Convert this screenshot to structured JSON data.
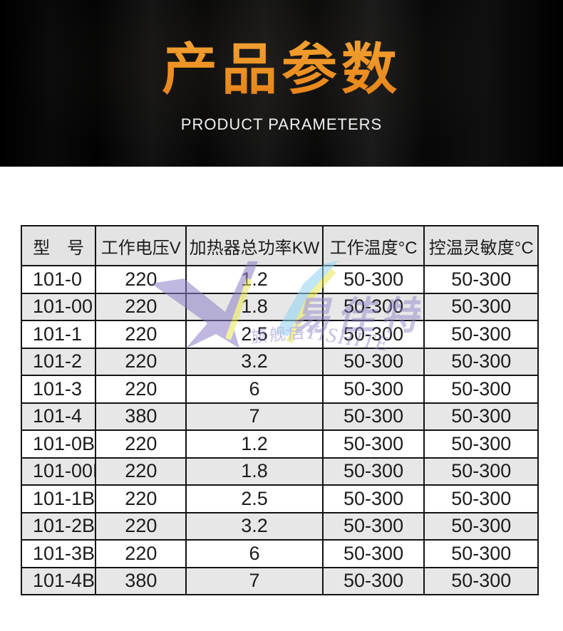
{
  "hero": {
    "title_cn": "产品参数",
    "title_en": "PRODUCT PARAMETERS",
    "accent_color": "#f09a2b",
    "background_color": "#000000"
  },
  "table": {
    "columns": [
      "型　号",
      "工作电压V",
      "加热器总功率KW",
      "工作温度°C",
      "控温灵敏度°C"
    ],
    "column_keys": [
      "model",
      "voltage",
      "power",
      "temp",
      "sensitivity"
    ],
    "rows": [
      [
        "101-0",
        "220",
        "1.2",
        "50-300",
        "50-300"
      ],
      [
        "101-00",
        "220",
        "1.8",
        "50-300",
        "50-300"
      ],
      [
        "101-1",
        "220",
        "2.5",
        "50-300",
        "50-300"
      ],
      [
        "101-2",
        "220",
        "3.2",
        "50-300",
        "50-300"
      ],
      [
        "101-3",
        "220",
        "6",
        "50-300",
        "50-300"
      ],
      [
        "101-4",
        "380",
        "7",
        "50-300",
        "50-300"
      ],
      [
        "101-0B",
        "220",
        "1.2",
        "50-300",
        "50-300"
      ],
      [
        "101-00B",
        "220",
        "1.8",
        "50-300",
        "50-300"
      ],
      [
        "101-1B",
        "220",
        "2.5",
        "50-300",
        "50-300"
      ],
      [
        "101-2B",
        "220",
        "3.2",
        "50-300",
        "50-300"
      ],
      [
        "101-3B",
        "220",
        "6",
        "50-300",
        "50-300"
      ],
      [
        "101-4B",
        "380",
        "7",
        "50-300",
        "50-300"
      ]
    ],
    "header_bg": "#e3e3e3",
    "stripe_bg": "#e7e7e7",
    "border_color": "#141414"
  },
  "watermark": {
    "brand_cn": "易佳特",
    "store_label": "旗舰店",
    "brand_en": "—YISHITE",
    "colors": {
      "purple": "#8b7ec6",
      "yellow": "#ece74e",
      "blue": "#8fd3f3"
    }
  }
}
